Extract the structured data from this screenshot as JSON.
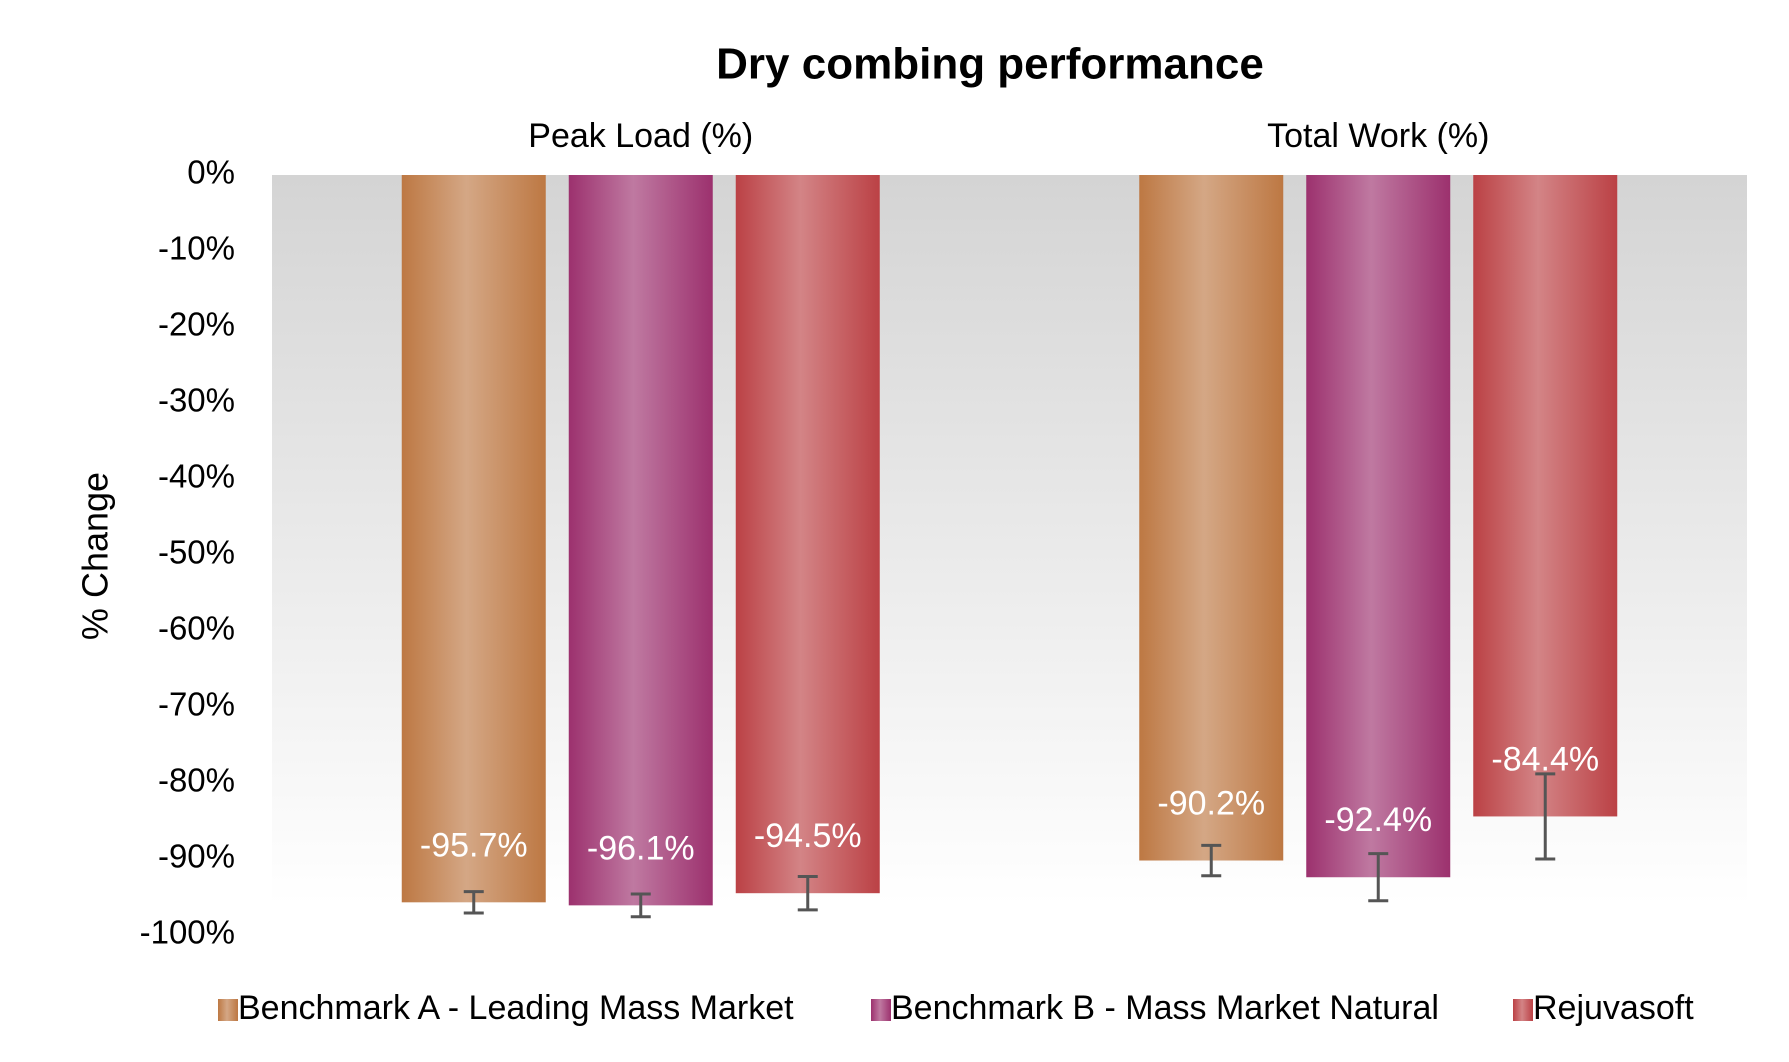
{
  "chart_data": {
    "type": "bar",
    "title": "Dry combing performance",
    "y_label": "% Change",
    "categories": [
      "Peak Load (%)",
      "Total Work (%)"
    ],
    "series": [
      {
        "name": "Benchmark A - Leading Mass Market",
        "color": "#bd7843",
        "values": [
          -95.7,
          -90.2
        ],
        "value_labels": [
          "-95.7%",
          "-90.2%"
        ],
        "errors": [
          1.4,
          2.0
        ]
      },
      {
        "name": "Benchmark B - Mass Market Natural",
        "color": "#9c316e",
        "values": [
          -96.1,
          -92.4
        ],
        "value_labels": [
          "-96.1%",
          "-92.4%"
        ],
        "errors": [
          1.5,
          3.1
        ]
      },
      {
        "name": "Rejuvasoft",
        "color": "#bb4145",
        "values": [
          -94.5,
          -84.4
        ],
        "value_labels": [
          "-94.5%",
          "-84.4%"
        ],
        "errors": [
          2.2,
          5.6
        ]
      }
    ],
    "ylim": [
      -100,
      0
    ],
    "yticks": [
      {
        "value": 0,
        "label": "0%"
      },
      {
        "value": -10,
        "label": "-10%"
      },
      {
        "value": -20,
        "label": "-20%"
      },
      {
        "value": -30,
        "label": "-30%"
      },
      {
        "value": -40,
        "label": "-40%"
      },
      {
        "value": -50,
        "label": "-50%"
      },
      {
        "value": -60,
        "label": "-60%"
      },
      {
        "value": -70,
        "label": "-70%"
      },
      {
        "value": -80,
        "label": "-80%"
      },
      {
        "value": -90,
        "label": "-90%"
      },
      {
        "value": -100,
        "label": "-100%"
      }
    ],
    "legend": "bottom"
  }
}
